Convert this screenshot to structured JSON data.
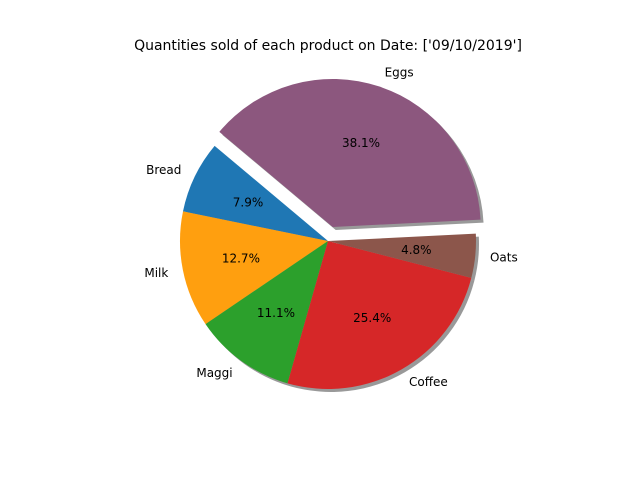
{
  "chart_data": {
    "type": "pie",
    "title": "Quantities sold of each product on Date: ['09/10/2019']",
    "start_angle": 140,
    "direction": "counterclockwise",
    "shadow": true,
    "slices": [
      {
        "label": "Bread",
        "percent": 7.9,
        "pct_label": "7.9%",
        "color": "#1f77b4",
        "exploded": false
      },
      {
        "label": "Milk",
        "percent": 12.7,
        "pct_label": "12.7%",
        "color": "#ff9f0f",
        "exploded": false
      },
      {
        "label": "Maggi",
        "percent": 11.1,
        "pct_label": "11.1%",
        "color": "#2ca02c",
        "exploded": false
      },
      {
        "label": "Coffee",
        "percent": 25.4,
        "pct_label": "25.4%",
        "color": "#d62728",
        "exploded": false
      },
      {
        "label": "Oats",
        "percent": 4.8,
        "pct_label": "4.8%",
        "color": "#8c564b",
        "exploded": false
      },
      {
        "label": "Eggs",
        "percent": 38.1,
        "pct_label": "38.1%",
        "color": "#8c577e",
        "exploded": true
      }
    ]
  }
}
